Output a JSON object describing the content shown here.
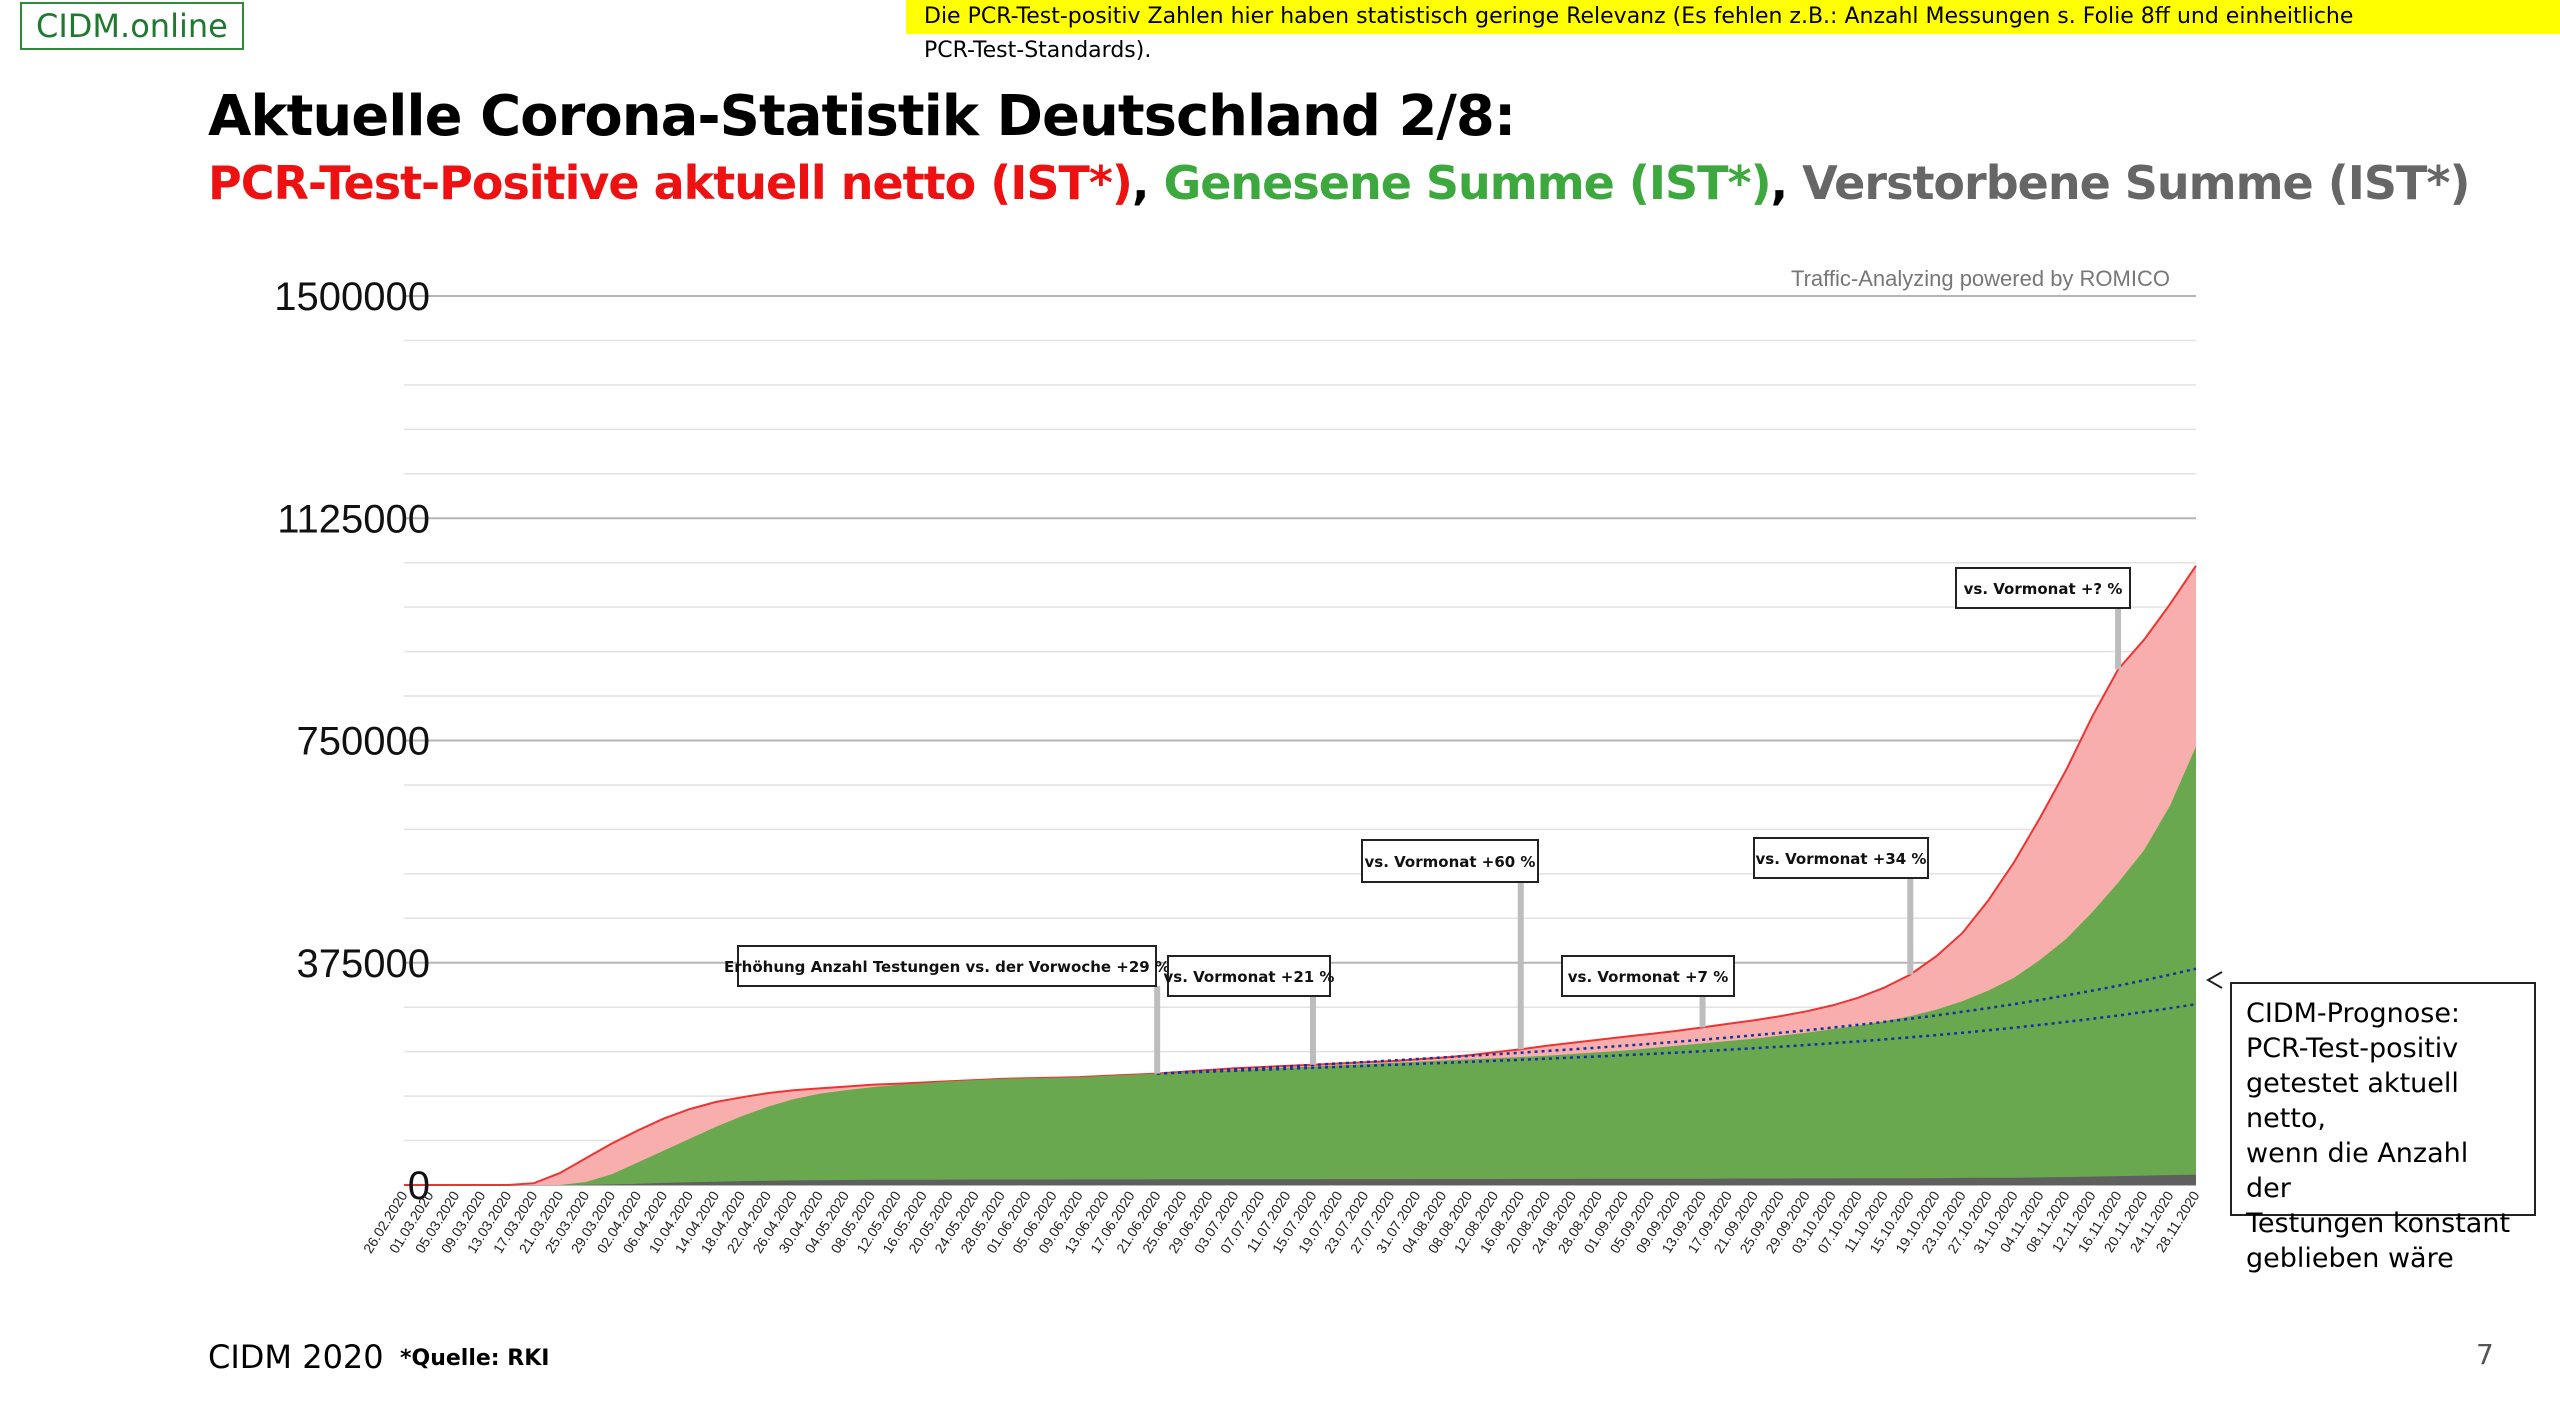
{
  "logo": "CIDM.online",
  "note_line1": "Die PCR-Test-positiv Zahlen hier haben statistisch geringe Relevanz (Es fehlen z.B.: Anzahl Messungen s. Folie 8ff und einheitliche",
  "note_line2": "PCR-Test-Standards).",
  "title": "Aktuelle Corona-Statistik Deutschland 2/8:",
  "subtitle": {
    "part1": "PCR-Test-Positive aktuell netto (IST*)",
    "sep1": ", ",
    "part2": "Genesene Summe (IST*)",
    "sep2": ", ",
    "part3": "Verstorbene Summe (IST*)"
  },
  "watermark": "Traffic-Analyzing powered by ROMICO",
  "forecast_box": {
    "lines": [
      "CIDM-Prognose:",
      "PCR-Test-positiv",
      "getestet aktuell netto,",
      "wenn die Anzahl der",
      "Testungen konstant",
      "geblieben wäre"
    ]
  },
  "footer": {
    "left": "CIDM 2020",
    "source": "*Quelle: RKI",
    "page": "7"
  },
  "colors": {
    "positive_fill": "#f9aeae",
    "positive_line": "#ee3333",
    "recovered": "#6aa84f",
    "deceased": "#5f5f5f",
    "forecast": "#1a2fa0"
  },
  "chart_data": {
    "type": "area",
    "ylim": [
      0,
      1500000
    ],
    "yticks": [
      0,
      375000,
      750000,
      1125000,
      1500000
    ],
    "ytick_labels": [
      "0",
      "375000",
      "750000",
      "1125000",
      "1500000"
    ],
    "x": [
      "26.02.2020",
      "01.03.2020",
      "05.03.2020",
      "09.03.2020",
      "13.03.2020",
      "17.03.2020",
      "21.03.2020",
      "25.03.2020",
      "29.03.2020",
      "02.04.2020",
      "06.04.2020",
      "10.04.2020",
      "14.04.2020",
      "18.04.2020",
      "22.04.2020",
      "26.04.2020",
      "30.04.2020",
      "04.05.2020",
      "08.05.2020",
      "12.05.2020",
      "16.05.2020",
      "20.05.2020",
      "24.05.2020",
      "28.05.2020",
      "01.06.2020",
      "05.06.2020",
      "09.06.2020",
      "13.06.2020",
      "17.06.2020",
      "21.06.2020",
      "25.06.2020",
      "29.06.2020",
      "03.07.2020",
      "07.07.2020",
      "11.07.2020",
      "15.07.2020",
      "19.07.2020",
      "23.07.2020",
      "27.07.2020",
      "31.07.2020",
      "04.08.2020",
      "08.08.2020",
      "12.08.2020",
      "16.08.2020",
      "20.08.2020",
      "24.08.2020",
      "28.08.2020",
      "01.09.2020",
      "05.09.2020",
      "09.09.2020",
      "13.09.2020",
      "17.09.2020",
      "21.09.2020",
      "25.09.2020",
      "29.09.2020",
      "03.10.2020",
      "07.10.2020",
      "11.10.2020",
      "15.10.2020",
      "19.10.2020",
      "23.10.2020",
      "27.10.2020",
      "31.10.2020",
      "04.11.2020",
      "08.11.2020",
      "12.11.2020",
      "16.11.2020",
      "20.11.2020",
      "24.11.2020",
      "28.11.2020"
    ],
    "series": [
      {
        "values": [
          0,
          0,
          0,
          0,
          0,
          3000,
          20000,
          45000,
          70000,
          92000,
          112000,
          128000,
          140000,
          148000,
          155000,
          160000,
          163000,
          166000,
          169000,
          171000,
          173000,
          175000,
          177000,
          179000,
          180000,
          181000,
          182000,
          184000,
          186000,
          188000,
          191000,
          194000,
          197000,
          199000,
          201000,
          203000,
          205000,
          207000,
          209000,
          212000,
          215000,
          219000,
          224000,
          229000,
          235000,
          240000,
          245000,
          250000,
          255000,
          260000,
          266000,
          272000,
          278000,
          285000,
          293000,
          303000,
          316000,
          333000,
          355000,
          386000,
          425000,
          480000,
          545000,
          620000,
          700000,
          790000,
          870000,
          920000,
          980000,
          1045000
        ]
      },
      {
        "values": [
          0,
          0,
          0,
          0,
          0,
          0,
          0,
          5000,
          18000,
          38000,
          58000,
          78000,
          98000,
          116000,
          132000,
          145000,
          154000,
          160000,
          165000,
          169000,
          172000,
          175000,
          177000,
          179000,
          180000,
          181000,
          182000,
          184000,
          186000,
          188000,
          190000,
          192000,
          194000,
          196000,
          198000,
          200000,
          202000,
          204000,
          206000,
          208000,
          210000,
          212000,
          214000,
          216000,
          218000,
          221000,
          224000,
          227000,
          231000,
          235000,
          239000,
          243000,
          247000,
          252000,
          257000,
          263000,
          269000,
          276000,
          285000,
          296000,
          310000,
          328000,
          350000,
          380000,
          415000,
          460000,
          510000,
          565000,
          640000,
          740000
        ]
      },
      {
        "values": [
          0,
          0,
          0,
          0,
          0,
          0,
          0,
          500,
          1000,
          2000,
          3500,
          4500,
          5500,
          6500,
          7200,
          7800,
          8200,
          8500,
          8700,
          8900,
          9000,
          9100,
          9200,
          9250,
          9300,
          9350,
          9400,
          9450,
          9500,
          9550,
          9600,
          9650,
          9700,
          9750,
          9800,
          9850,
          9900,
          9950,
          10000,
          10050,
          10100,
          10150,
          10200,
          10250,
          10300,
          10350,
          10400,
          10450,
          10500,
          10600,
          10700,
          10800,
          10900,
          11000,
          11100,
          11200,
          11300,
          11400,
          11500,
          11700,
          11900,
          12100,
          12400,
          12900,
          13500,
          14200,
          15000,
          15800,
          16700,
          17600
        ]
      }
    ],
    "forecast": {
      "x_range": [
        "21.06.2020",
        "28.11.2020"
      ],
      "upper_end": 365000,
      "lower_end": 305000
    },
    "annotations": [
      {
        "text": "Erhöhung Anzahl Testungen vs. der Vorwoche  +29 %",
        "x": "21.06.2020"
      },
      {
        "text": "vs. Vormonat +21 %",
        "x": "15.07.2020"
      },
      {
        "text": "vs. Vormonat +60 %",
        "x": "16.08.2020"
      },
      {
        "text": "vs. Vormonat +7 %",
        "x": "13.09.2020"
      },
      {
        "text": "vs. Vormonat +34 %",
        "x": "15.10.2020"
      },
      {
        "text": "vs. Vormonat +? %",
        "x": "16.11.2020"
      }
    ]
  }
}
